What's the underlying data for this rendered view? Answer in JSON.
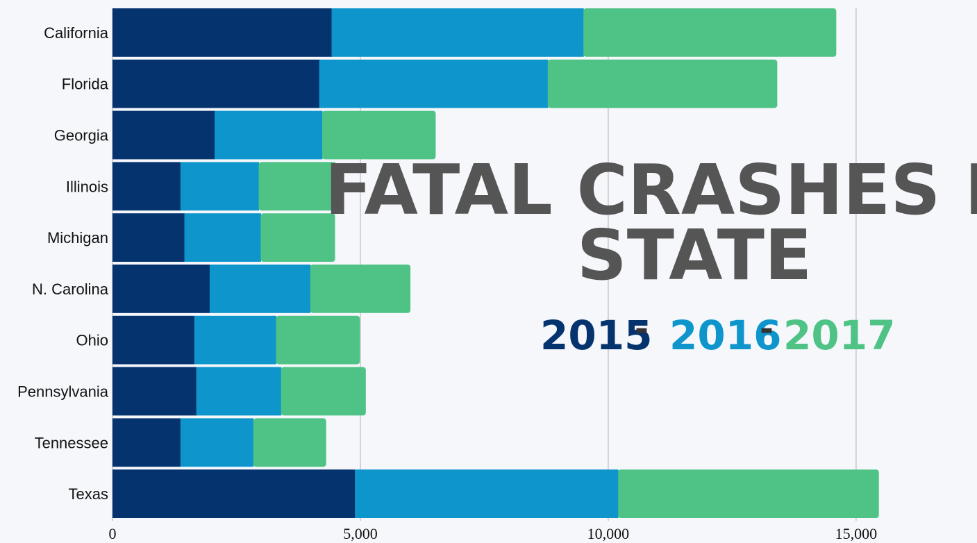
{
  "chart_data": {
    "type": "bar",
    "orientation": "horizontal",
    "stacked": true,
    "title_lines": [
      "FATAL CRASHES BY",
      "STATE"
    ],
    "categories": [
      "California",
      "Florida",
      "Georgia",
      "Illinois",
      "Michigan",
      "N. Carolina",
      "Ohio",
      "Pennsylvania",
      "Tennessee",
      "Texas"
    ],
    "series": [
      {
        "name": "2015",
        "color": "#05336e",
        "values": [
          4420,
          4170,
          2060,
          1370,
          1450,
          1960,
          1650,
          1690,
          1370,
          4890
        ]
      },
      {
        "name": "2016",
        "color": "#0e96cc",
        "values": [
          5080,
          4610,
          2170,
          1580,
          1540,
          2030,
          1650,
          1710,
          1470,
          5310
        ]
      },
      {
        "name": "2017",
        "color": "#4fc385",
        "values": [
          5100,
          4630,
          2290,
          1570,
          1500,
          2020,
          1690,
          1710,
          1470,
          5260
        ]
      }
    ],
    "xticks": [
      0,
      5000,
      10000,
      15000
    ],
    "xtick_labels": [
      "0",
      "5,000",
      "10,000",
      "15,000"
    ],
    "xlim": [
      0,
      15800
    ],
    "grid": true
  },
  "legend": {
    "separator": "-"
  }
}
